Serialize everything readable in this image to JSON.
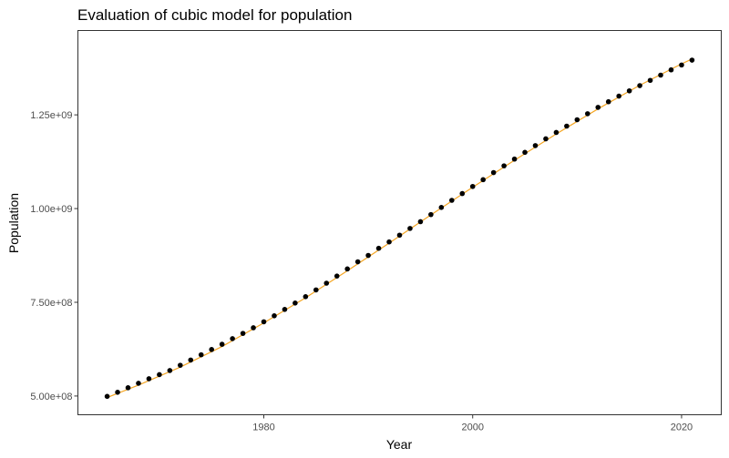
{
  "chart_data": {
    "type": "scatter",
    "title": "Evaluation of cubic model for population",
    "xlabel": "Year",
    "ylabel": "Population",
    "xlim": [
      1962.2,
      2023.8
    ],
    "ylim": [
      450000000,
      1475000000
    ],
    "x_ticks": [
      1980,
      2000,
      2020
    ],
    "x_tick_labels": [
      "1980",
      "2000",
      "2020"
    ],
    "y_ticks": [
      500000000,
      750000000,
      1000000000,
      1250000000
    ],
    "y_tick_labels": [
      "5.00e+08",
      "7.50e+08",
      "1.00e+09",
      "1.25e+09"
    ],
    "grid": false,
    "legend": "none",
    "series": [
      {
        "type": "scatter",
        "color": "#000000",
        "x": [
          1965,
          1966,
          1967,
          1968,
          1969,
          1970,
          1971,
          1972,
          1973,
          1974,
          1975,
          1976,
          1977,
          1978,
          1979,
          1980,
          1981,
          1982,
          1983,
          1984,
          1985,
          1986,
          1987,
          1988,
          1989,
          1990,
          1991,
          1992,
          1993,
          1994,
          1995,
          1996,
          1997,
          1998,
          1999,
          2000,
          2001,
          2002,
          2003,
          2004,
          2005,
          2006,
          2007,
          2008,
          2009,
          2010,
          2011,
          2012,
          2013,
          2014,
          2015,
          2016,
          2017,
          2018,
          2019,
          2020,
          2021
        ],
        "y": [
          499000000.0,
          510000000.0,
          522000000.0,
          534000000.0,
          546000000.0,
          557000000.0,
          568000000.0,
          582000000.0,
          596000000.0,
          610000000.0,
          624000000.0,
          638000000.0,
          653000000.0,
          667000000.0,
          682000000.0,
          698000000.0,
          714000000.0,
          731000000.0,
          748000000.0,
          765000000.0,
          783000000.0,
          801000000.0,
          820000000.0,
          839000000.0,
          858000000.0,
          875000000.0,
          894000000.0,
          911000000.0,
          929000000.0,
          947000000.0,
          965000000.0,
          984000000.0,
          1003000000.0,
          1022000000.0,
          1040000000.0,
          1059000000.0,
          1077000000.0,
          1096000000.0,
          1114000000.0,
          1132000000.0,
          1150000000.0,
          1168000000.0,
          1186000000.0,
          1203000000.0,
          1220000000.0,
          1237000000.0,
          1253000000.0,
          1270000000.0,
          1285000000.0,
          1300000000.0,
          1314000000.0,
          1328000000.0,
          1342000000.0,
          1356000000.0,
          1370000000.0,
          1383000000.0,
          1396000000.0
        ]
      },
      {
        "type": "line",
        "color": "#f5a623",
        "x": [
          1965,
          1968,
          1972,
          1976,
          1980,
          1984,
          1988,
          1992,
          1996,
          2000,
          2004,
          2008,
          2012,
          2016,
          2020,
          2021
        ],
        "y": [
          496000000.0,
          529000000.0,
          577000000.0,
          632000000.0,
          695000000.0,
          762000000.0,
          834000000.0,
          908000000.0,
          983000000.0,
          1057000000.0,
          1129000000.0,
          1199000000.0,
          1266000000.0,
          1329000000.0,
          1386000000.0,
          1399000000.0
        ]
      }
    ]
  }
}
